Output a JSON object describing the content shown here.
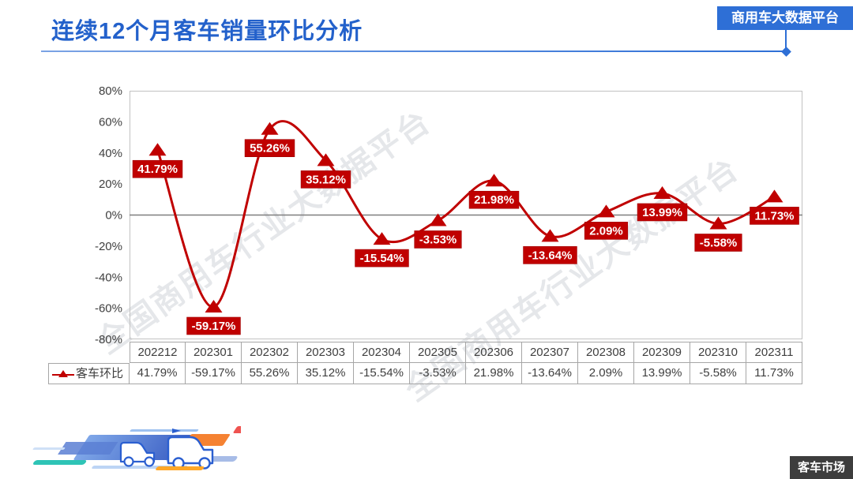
{
  "header": {
    "title": "连续12个月客车销量环比分析",
    "platform_badge": "商用车大数据平台"
  },
  "footer": {
    "market_badge": "客车市场",
    "logo": "speed-trucks-logo"
  },
  "watermark": {
    "text": "全国商用车行业大数据平台"
  },
  "colors": {
    "accent_red": "#C00000",
    "title_blue": "#2361CB",
    "badge_blue": "#2E6FD6",
    "dark_badge": "#3D3D3D",
    "table_border": "#A6A6A6",
    "axis_text": "#3F3F3F",
    "plot_border": "#C2C2C2",
    "zero_line": "#7F7F7F"
  },
  "chart_data": {
    "type": "line",
    "title": "连续12个月客车销量环比分析",
    "smooth": true,
    "marker": "triangle-up",
    "grid": "zero-line-only",
    "legend_position": "table-left",
    "xlabel": "",
    "ylabel": "",
    "ylim": [
      -80,
      80
    ],
    "yticks": [
      "80%",
      "60%",
      "40%",
      "20%",
      "0%",
      "-20%",
      "-40%",
      "-60%",
      "-80%"
    ],
    "categories": [
      "202212",
      "202301",
      "202302",
      "202303",
      "202304",
      "202305",
      "202306",
      "202307",
      "202308",
      "202309",
      "202310",
      "202311"
    ],
    "series": [
      {
        "name": "客车环比",
        "values": [
          41.79,
          -59.17,
          55.26,
          35.12,
          -15.54,
          -3.53,
          21.98,
          -13.64,
          2.09,
          13.99,
          -5.58,
          11.73
        ],
        "labels": [
          "41.79%",
          "-59.17%",
          "55.26%",
          "35.12%",
          "-15.54%",
          "-3.53%",
          "21.98%",
          "-13.64%",
          "2.09%",
          "13.99%",
          "-5.58%",
          "11.73%"
        ]
      }
    ]
  }
}
